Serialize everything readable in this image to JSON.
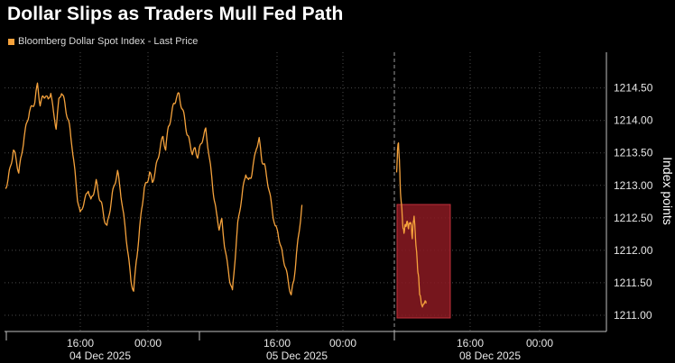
{
  "title": "Dollar Slips as Traders Mull Fed Path",
  "colors": {
    "background": "#000000",
    "line": "#f5a23c",
    "grid": "#4a4a4a",
    "axis": "#bfbfbf",
    "highlight_fill": "#8b1a22",
    "highlight_stroke": "#c0303a"
  },
  "chart_data": {
    "type": "line",
    "legend": [
      "Bloomberg Dollar Spot Index - Last Price"
    ],
    "legend_position": "top-left",
    "ylabel": "Index points",
    "xlabel": "",
    "ylim": [
      1210.75,
      1215.05
    ],
    "y_ticks": [
      "1211.00",
      "1211.50",
      "1212.00",
      "1212.50",
      "1213.00",
      "1213.50",
      "1214.00",
      "1214.50"
    ],
    "x_ticks": [
      {
        "time": "16:00",
        "date": "04 Dec 2025"
      },
      {
        "time": "00:00",
        "date": ""
      },
      {
        "time": "16:00",
        "date": "05 Dec 2025"
      },
      {
        "time": "00:00",
        "date": ""
      },
      {
        "time": "16:00",
        "date": "08 Dec 2025"
      },
      {
        "time": "00:00",
        "date": ""
      }
    ],
    "grid": true,
    "session_break_dashed": true,
    "series": [
      {
        "name": "Bloomberg Dollar Spot Index - Last Price",
        "x": [
          0,
          0.4,
          0.8,
          1.2,
          1.6,
          2.0,
          2.4,
          2.8,
          3.2,
          3.6,
          4.0,
          4.4,
          4.8,
          5.2,
          5.6,
          6.0,
          6.4,
          6.8,
          7.2,
          7.6,
          8.0,
          8.4,
          8.8,
          9.2,
          9.6,
          10.0,
          10.4,
          10.8,
          11.2,
          11.6,
          12.0,
          12.4,
          12.8,
          13.2,
          13.6,
          14.0,
          14.4,
          14.8,
          15.2,
          15.6,
          16.0,
          16.4,
          16.8,
          17.2,
          17.6,
          18.0,
          18.4,
          18.8,
          19.2,
          19.6,
          20.0,
          20.4,
          20.8,
          21.2,
          21.6,
          22.0,
          22.4,
          22.8,
          23.2,
          23.6,
          24.0,
          24.4,
          24.8,
          25.2,
          25.6,
          26.0,
          26.4,
          26.8,
          27.2,
          27.6,
          28.0,
          28.4,
          28.8,
          29.2,
          29.6,
          30.0,
          30.4,
          30.8,
          31.2,
          31.6,
          32.0,
          32.4,
          32.8,
          33.2,
          33.6,
          34.0,
          34.4,
          34.8,
          35.2,
          35.6,
          36.0,
          36.4,
          36.8,
          37.2,
          37.6,
          38.0,
          38.4,
          38.8,
          39.2,
          39.6,
          40.0,
          40.4,
          40.8,
          41.2,
          41.6,
          42.0,
          42.4,
          42.8,
          43.2,
          43.6,
          44.0,
          44.4,
          44.8,
          45.2,
          45.6,
          46.0,
          46.4,
          46.8,
          47.2,
          47.6,
          48.0,
          48.4,
          48.8,
          49.2,
          49.6,
          50.0,
          50.4,
          50.8,
          51.2,
          51.6,
          52.0,
          52.4,
          52.8,
          53.2,
          53.6,
          54.0,
          54.4,
          54.8,
          55.2,
          55.6,
          56.0,
          56.4,
          56.8,
          57.2,
          57.6
        ],
        "y": [
          1212.95,
          1213.1,
          1213.3,
          1213.55,
          1213.4,
          1213.2,
          1213.45,
          1213.75,
          1213.95,
          1214.15,
          1214.2,
          1214.3,
          1214.55,
          1214.25,
          1214.35,
          1214.4,
          1214.3,
          1214.45,
          1214.1,
          1213.9,
          1214.3,
          1214.45,
          1214.3,
          1214.1,
          1213.9,
          1213.6,
          1213.2,
          1212.8,
          1212.55,
          1212.7,
          1212.8,
          1212.95,
          1212.75,
          1212.9,
          1213.05,
          1212.85,
          1212.7,
          1212.5,
          1212.35,
          1212.6,
          1212.85,
          1213.05,
          1213.2,
          1212.95,
          1212.6,
          1212.3,
          1211.9,
          1211.55,
          1211.35,
          1211.85,
          1212.2,
          1212.65,
          1212.95,
          1213.05,
          1213.2,
          1213.05,
          1213.2,
          1213.4,
          1213.6,
          1213.75,
          1213.55,
          1213.9,
          1214.05,
          1214.25,
          1214.35,
          1214.4,
          1214.2,
          1214.05,
          1213.8,
          1213.65,
          1213.5,
          1213.55,
          1213.45,
          1213.6,
          1213.75,
          1213.85,
          1213.55,
          1213.2,
          1212.85,
          1212.55,
          1212.35,
          1212.45,
          1212.1,
          1211.8,
          1211.55,
          1211.35,
          1211.9,
          1212.4,
          1212.7,
          1212.95,
          1213.2,
          1213.05,
          1213.15,
          1213.35,
          1213.6,
          1213.7,
          1213.4,
          1213.3,
          1213.1,
          1212.85,
          1212.6,
          1212.35,
          1212.3,
          1212.05,
          1211.9,
          1211.7,
          1211.5,
          1211.3,
          1211.55,
          1211.95,
          1212.3,
          1212.7,
          1213.2,
          1213.55,
          1213.65,
          1213.4,
          1212.95,
          1212.75,
          1212.55,
          1212.35,
          1212.25,
          1212.4,
          1212.35,
          1212.45,
          1212.4,
          1212.35,
          1212.4,
          1212.45,
          1212.35,
          1212.2,
          1212.4,
          1212.55,
          1212.3,
          1212.1,
          1211.9,
          1211.7,
          1211.55,
          1211.35,
          1211.25,
          1211.2,
          1211.1,
          1211.2,
          1211.15,
          1211.25,
          1211.18
        ],
        "x_unit": "hours since 04 Dec 2025 08:00"
      }
    ],
    "annotation": {
      "type": "highlight-box",
      "label": ""
    }
  }
}
